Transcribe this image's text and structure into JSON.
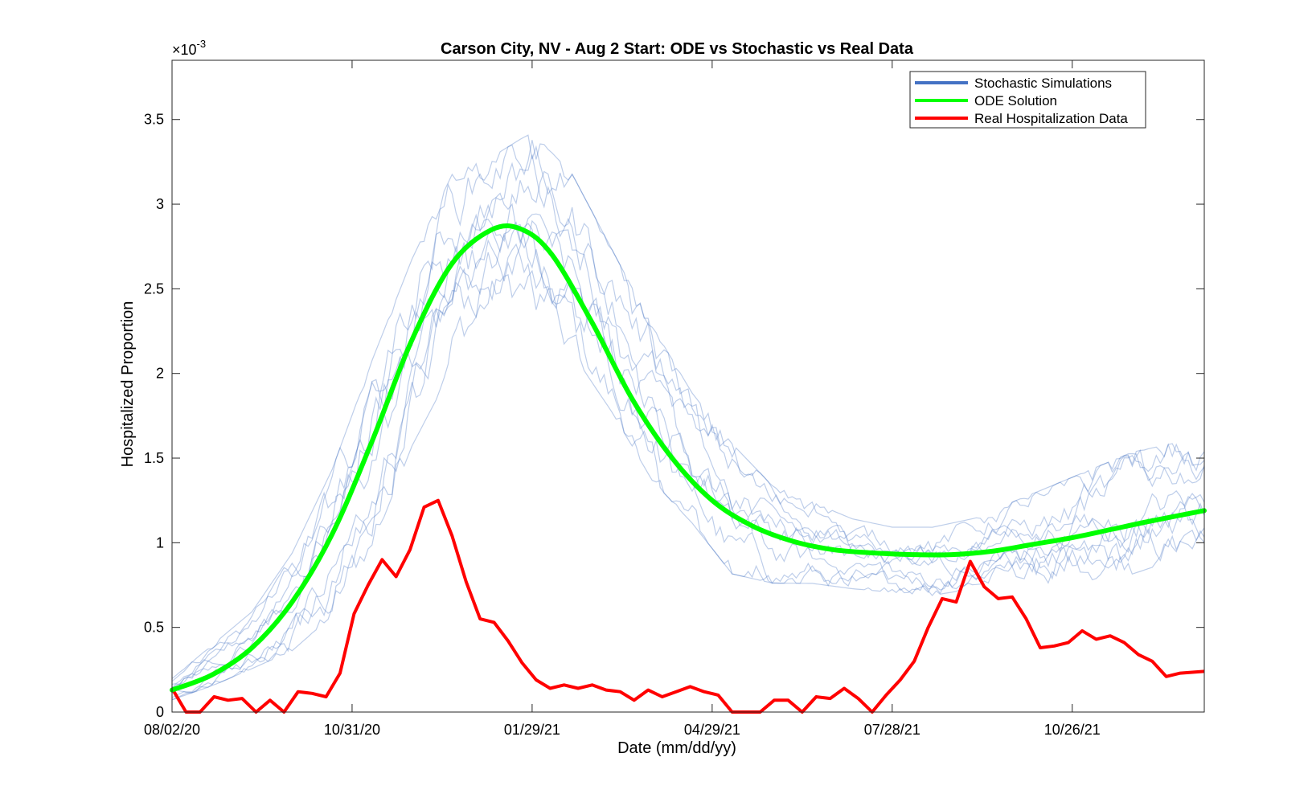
{
  "chart_data": {
    "type": "line",
    "title": "Carson City, NV - Aug 2 Start: ODE vs Stochastic vs Real Data",
    "xlabel": "Date (mm/dd/yy)",
    "ylabel": "Hospitalized Proportion",
    "y_exponent_label": "×10",
    "y_exponent_power": "-3",
    "x_axis": {
      "start": "08/02/20",
      "end": "12/31/21",
      "ticks": [
        "08/02/20",
        "10/31/20",
        "01/29/21",
        "04/29/21",
        "07/28/21",
        "10/26/21"
      ]
    },
    "y_axis": {
      "min": 0,
      "max": 3.85,
      "ticks": [
        "0",
        "0.5",
        "1",
        "1.5",
        "2",
        "2.5",
        "3",
        "3.5"
      ]
    },
    "legend": {
      "position": "top-right",
      "entries": [
        "Stochastic Simulations",
        "ODE Solution",
        "Real Hospitalization Data"
      ]
    },
    "colors": {
      "stochastic": "#4472c4",
      "ode": "#00ff00",
      "real": "#ff0000"
    },
    "series": [
      {
        "name": "ODE Solution",
        "x": [
          "08/02/20",
          "08/22/20",
          "09/11/20",
          "10/01/20",
          "10/21/20",
          "11/10/20",
          "11/30/20",
          "12/20/20",
          "01/09/21",
          "01/24/21",
          "02/08/21",
          "02/28/21",
          "03/20/21",
          "04/09/21",
          "04/29/21",
          "05/19/21",
          "06/08/21",
          "06/28/21",
          "07/18/21",
          "08/07/21",
          "08/27/21",
          "09/16/21",
          "10/06/21",
          "10/26/21",
          "11/15/21",
          "12/05/21",
          "12/31/21"
        ],
        "y": [
          0.13,
          0.22,
          0.38,
          0.65,
          1.05,
          1.6,
          2.2,
          2.65,
          2.85,
          2.85,
          2.7,
          2.3,
          1.85,
          1.5,
          1.25,
          1.1,
          1.01,
          0.96,
          0.94,
          0.93,
          0.93,
          0.95,
          0.99,
          1.03,
          1.08,
          1.13,
          1.19
        ]
      },
      {
        "name": "Real Hospitalization Data",
        "x": [
          "08/02/20",
          "08/09/20",
          "08/16/20",
          "08/23/20",
          "08/30/20",
          "09/06/20",
          "09/13/20",
          "09/20/20",
          "09/27/20",
          "10/04/20",
          "10/11/20",
          "10/18/20",
          "10/25/20",
          "11/01/20",
          "11/08/20",
          "11/15/20",
          "11/22/20",
          "11/29/20",
          "12/06/20",
          "12/13/20",
          "12/20/20",
          "12/27/20",
          "01/03/21",
          "01/10/21",
          "01/17/21",
          "01/24/21",
          "01/31/21",
          "02/07/21",
          "02/14/21",
          "02/21/21",
          "02/28/21",
          "03/07/21",
          "03/14/21",
          "03/21/21",
          "03/28/21",
          "04/04/21",
          "04/11/21",
          "04/18/21",
          "04/25/21",
          "05/02/21",
          "05/09/21",
          "05/16/21",
          "05/23/21",
          "05/30/21",
          "06/06/21",
          "06/13/21",
          "06/20/21",
          "06/27/21",
          "07/04/21",
          "07/11/21",
          "07/18/21",
          "07/25/21",
          "08/01/21",
          "08/08/21",
          "08/15/21",
          "08/22/21",
          "08/29/21",
          "09/05/21",
          "09/12/21",
          "09/19/21",
          "09/26/21",
          "10/03/21",
          "10/10/21",
          "10/17/21",
          "10/24/21",
          "10/31/21",
          "11/07/21",
          "11/14/21",
          "11/21/21",
          "11/28/21",
          "12/05/21",
          "12/12/21",
          "12/19/21",
          "12/31/21"
        ],
        "y": [
          0.14,
          0.0,
          0.0,
          0.09,
          0.07,
          0.08,
          0.0,
          0.07,
          0.0,
          0.12,
          0.11,
          0.09,
          0.23,
          0.58,
          0.75,
          0.9,
          0.8,
          0.96,
          1.21,
          1.25,
          1.04,
          0.77,
          0.55,
          0.53,
          0.42,
          0.29,
          0.19,
          0.14,
          0.16,
          0.14,
          0.16,
          0.13,
          0.12,
          0.07,
          0.13,
          0.09,
          0.12,
          0.15,
          0.12,
          0.1,
          0.0,
          0.0,
          0.0,
          0.07,
          0.07,
          0.0,
          0.09,
          0.08,
          0.14,
          0.08,
          0.0,
          0.1,
          0.19,
          0.3,
          0.5,
          0.67,
          0.65,
          0.89,
          0.74,
          0.67,
          0.68,
          0.55,
          0.38,
          0.39,
          0.41,
          0.48,
          0.43,
          0.45,
          0.41,
          0.34,
          0.3,
          0.21,
          0.23,
          0.24
        ]
      }
    ],
    "stochastic": {
      "name": "Stochastic Simulations",
      "runs": 10,
      "envelope": {
        "x": [
          "08/02/20",
          "08/22/20",
          "09/11/20",
          "10/01/20",
          "10/21/20",
          "11/10/20",
          "11/30/20",
          "12/20/20",
          "01/09/21",
          "01/29/21",
          "02/18/21",
          "03/10/21",
          "03/30/21",
          "04/19/21",
          "05/09/21",
          "05/29/21",
          "06/18/21",
          "07/08/21",
          "07/28/21",
          "08/17/21",
          "09/06/21",
          "09/26/21",
          "10/16/21",
          "11/05/21",
          "11/25/21",
          "12/15/21",
          "12/31/21"
        ],
        "low": [
          0.07,
          0.15,
          0.25,
          0.35,
          0.55,
          0.95,
          1.55,
          2.0,
          2.3,
          2.3,
          2.1,
          1.75,
          1.35,
          1.1,
          0.8,
          0.75,
          0.75,
          0.72,
          0.7,
          0.68,
          0.72,
          0.75,
          0.72,
          0.75,
          0.8,
          0.88,
          0.95
        ],
        "high": [
          0.2,
          0.4,
          0.6,
          0.95,
          1.45,
          2.1,
          2.7,
          3.2,
          3.3,
          3.45,
          3.2,
          2.75,
          2.3,
          1.9,
          1.6,
          1.35,
          1.25,
          1.15,
          1.1,
          1.1,
          1.15,
          1.25,
          1.35,
          1.45,
          1.55,
          1.6,
          1.55
        ]
      }
    }
  }
}
